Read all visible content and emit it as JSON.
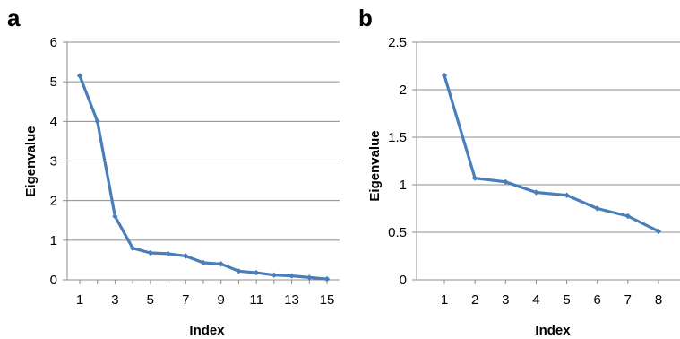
{
  "chart_data": [
    {
      "type": "line",
      "panel_label": "a",
      "title": "",
      "xlabel": "Index",
      "ylabel": "Eigenvalue",
      "ylim": [
        0,
        6
      ],
      "yticks": [
        0,
        1,
        2,
        3,
        4,
        5,
        6
      ],
      "xlim": [
        1,
        15
      ],
      "xticks": [
        1,
        3,
        5,
        7,
        9,
        11,
        13,
        15
      ],
      "grid": true,
      "line_color": "#4a7ebb",
      "series": [
        {
          "x": [
            1,
            2,
            3,
            4,
            5,
            6,
            7,
            8,
            9,
            10,
            11,
            12,
            13,
            14,
            15
          ],
          "values": [
            5.15,
            4.0,
            1.6,
            0.8,
            0.68,
            0.66,
            0.6,
            0.43,
            0.4,
            0.22,
            0.18,
            0.12,
            0.1,
            0.06,
            0.02
          ]
        }
      ]
    },
    {
      "type": "line",
      "panel_label": "b",
      "title": "",
      "xlabel": "Index",
      "ylabel": "Eigenvalue",
      "ylim": [
        0,
        2.5
      ],
      "yticks": [
        "0",
        "0.5",
        "1",
        "1.5",
        "2",
        "2.5"
      ],
      "xlim": [
        1,
        8
      ],
      "xticks": [
        1,
        2,
        3,
        4,
        5,
        6,
        7,
        8
      ],
      "grid": true,
      "line_color": "#4a7ebb",
      "series": [
        {
          "x": [
            1,
            2,
            3,
            4,
            5,
            6,
            7,
            8
          ],
          "values": [
            2.15,
            1.07,
            1.03,
            0.92,
            0.89,
            0.75,
            0.67,
            0.51
          ]
        }
      ]
    }
  ]
}
